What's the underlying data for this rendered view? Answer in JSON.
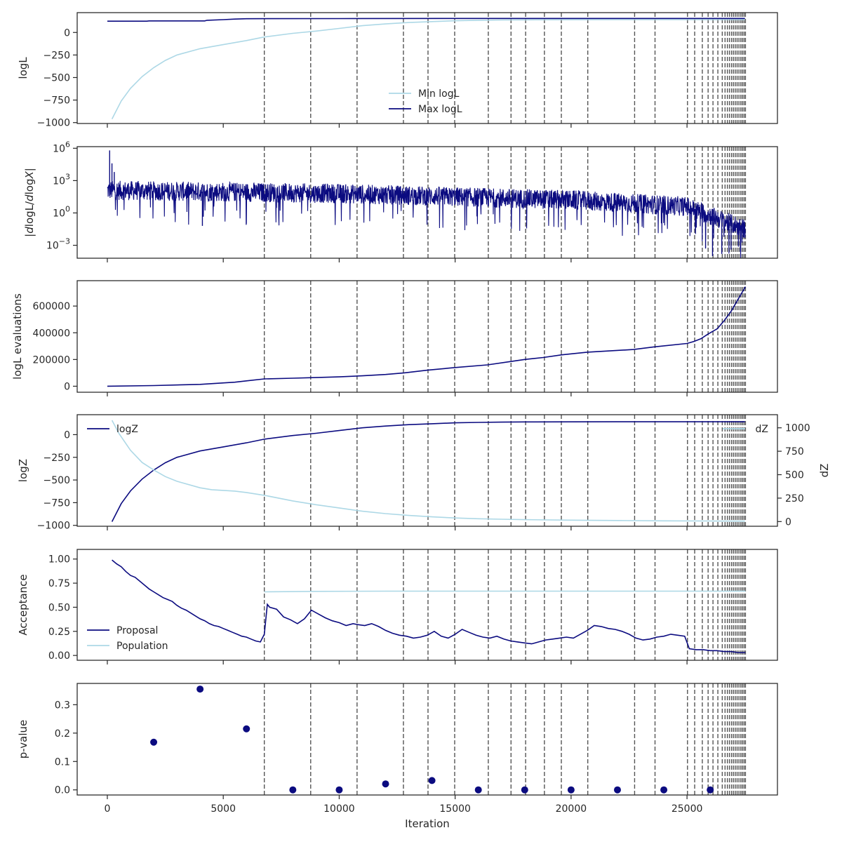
{
  "colors": {
    "dark": "#0b0b80",
    "light": "#add8e6",
    "vline": "#555555",
    "axes": "#262626"
  },
  "chart_data": {
    "type": "line",
    "xlabel": "Iteration",
    "xlim": [
      -1300,
      28900
    ],
    "x_ticks": [
      0,
      5000,
      10000,
      15000,
      20000,
      25000
    ],
    "x_tick_labels": [
      "0",
      "5000",
      "10000",
      "15000",
      "20000",
      "25000"
    ],
    "vlines": [
      6770,
      8770,
      10770,
      12770,
      13830,
      14980,
      16430,
      17410,
      18040,
      18850,
      19580,
      20720,
      22740,
      23620,
      25020,
      25330,
      25660,
      25910,
      26120,
      26330,
      26520,
      26640,
      26740,
      26830,
      26920,
      27000,
      27080,
      27160,
      27240,
      27320,
      27390,
      27460,
      27520
    ],
    "panels": [
      {
        "id": "logl",
        "ylabel": "logL",
        "ylim": [
          -1010,
          220
        ],
        "y_ticks": [
          0,
          -250,
          -500,
          -750,
          -1000
        ],
        "y_tick_labels": [
          "0",
          "−250",
          "−500",
          "−750",
          "−1000"
        ],
        "legend": "center",
        "series": [
          {
            "name": "Min logL",
            "color": "light",
            "x": [
              200,
              600,
              1000,
              1500,
              2000,
              2500,
              3000,
              4000,
              5000,
              6000,
              6770,
              8000,
              9000,
              10000,
              11000,
              12000,
              13000,
              14000,
              15000,
              16000,
              17000,
              18000,
              20000,
              22000,
              24000,
              26000,
              27500
            ],
            "y": [
              -960,
              -760,
              -620,
              -490,
              -390,
              -310,
              -250,
              -180,
              -135,
              -90,
              -50,
              -10,
              15,
              45,
              75,
              95,
              110,
              120,
              130,
              135,
              138,
              140,
              141,
              142,
              142,
              142,
              142
            ]
          },
          {
            "name": "Max logL",
            "color": "dark",
            "x": [
              0,
              1700,
              1800,
              3000,
              4200,
              4300,
              5000,
              5500,
              6000,
              7000,
              10000,
              15000,
              20000,
              25000,
              27500
            ],
            "y": [
              125,
              125,
              128,
              128,
              128,
              135,
              142,
              148,
              152,
              153,
              154,
              155,
              155,
              155,
              155
            ]
          }
        ]
      },
      {
        "id": "dlogl",
        "ylabel": "|dlogL/dlogX|",
        "log": true,
        "ylim_exp": [
          -4.2,
          6.15
        ],
        "y_tick_exps": [
          -3,
          0,
          3,
          6
        ],
        "y_tick_labels": [
          "10",
          "10",
          "10",
          "10"
        ],
        "y_tick_sups": [
          "−3",
          "0",
          "3",
          "6"
        ],
        "noise_series": {
          "color": "dark",
          "center_x": [
            0,
            6770,
            10000,
            15000,
            20000,
            25000,
            27500
          ],
          "center_log": [
            2.1,
            1.9,
            1.8,
            1.5,
            1.2,
            0.6,
            -1.5
          ],
          "spread": 0.9,
          "spikes": [
            [
              100,
              5.8
            ],
            [
              200,
              4.6
            ],
            [
              300,
              3.8
            ],
            [
              4100,
              -1.2
            ],
            [
              25800,
              -3.3
            ],
            [
              26100,
              -4.0
            ],
            [
              26500,
              -3.8
            ],
            [
              26900,
              -3.4
            ],
            [
              27300,
              -3.6
            ]
          ]
        }
      },
      {
        "id": "evals",
        "ylabel": "logL evaluations",
        "ylim": [
          -45000,
          790000
        ],
        "y_ticks": [
          0,
          200000,
          400000,
          600000
        ],
        "y_tick_labels": [
          "0",
          "200000",
          "400000",
          "600000"
        ],
        "series": [
          {
            "name": "",
            "color": "dark",
            "x": [
              0,
              2000,
              4000,
              5500,
              6000,
              6770,
              8000,
              9000,
              10000,
              11000,
              12000,
              12800,
              13800,
              15000,
              16400,
              17400,
              18000,
              18800,
              19600,
              20700,
              22700,
              23600,
              25000,
              25300,
              25600,
              25900,
              26300,
              26600,
              26900,
              27200,
              27520
            ],
            "y": [
              0,
              5000,
              14000,
              30000,
              40000,
              55000,
              60000,
              65000,
              70000,
              78000,
              88000,
              100000,
              120000,
              140000,
              160000,
              185000,
              200000,
              215000,
              235000,
              255000,
              275000,
              295000,
              320000,
              335000,
              355000,
              390000,
              430000,
              490000,
              560000,
              650000,
              745000
            ]
          }
        ]
      },
      {
        "id": "logz",
        "ylabel": "logZ",
        "ylim": [
          -1010,
          220
        ],
        "y_ticks": [
          0,
          -250,
          -500,
          -750,
          -1000
        ],
        "y_tick_labels": [
          "0",
          "−250",
          "−500",
          "−750",
          "−1000"
        ],
        "ylabel2": "dZ",
        "ylim2": [
          -50,
          1140
        ],
        "y2_ticks": [
          0,
          250,
          500,
          750,
          1000
        ],
        "y2_tick_labels": [
          "0",
          "250",
          "500",
          "750",
          "1000"
        ],
        "series": [
          {
            "name": "logZ",
            "color": "dark",
            "axis": 1,
            "x": [
              200,
              600,
              1000,
              1500,
              2000,
              2500,
              3000,
              4000,
              5000,
              6000,
              6770,
              8000,
              9000,
              10000,
              11000,
              12000,
              13000,
              14000,
              15000,
              16000,
              17000,
              18000,
              20000,
              22000,
              24000,
              26000,
              27500
            ],
            "y": [
              -960,
              -760,
              -620,
              -490,
              -390,
              -310,
              -250,
              -180,
              -135,
              -90,
              -50,
              -10,
              15,
              45,
              75,
              95,
              110,
              120,
              130,
              135,
              138,
              140,
              141,
              142,
              142,
              142,
              142
            ]
          },
          {
            "name": "dZ",
            "color": "light",
            "axis": 2,
            "x": [
              200,
              500,
              1000,
              1500,
              2000,
              2500,
              3000,
              4000,
              4500,
              5500,
              6000,
              6770,
              8000,
              9000,
              10000,
              11000,
              12000,
              13000,
              14000,
              15000,
              16000,
              17000,
              18000,
              20000,
              22000,
              24000,
              26000,
              27500
            ],
            "y": [
              1080,
              940,
              760,
              630,
              550,
              480,
              430,
              360,
              340,
              325,
              310,
              280,
              220,
              180,
              145,
              110,
              85,
              65,
              50,
              38,
              30,
              25,
              20,
              15,
              11,
              8,
              6,
              5
            ]
          }
        ]
      },
      {
        "id": "accept",
        "ylabel": "Acceptance",
        "ylim": [
          -0.05,
          1.1
        ],
        "y_ticks": [
          0,
          0.25,
          0.5,
          0.75,
          1.0
        ],
        "y_tick_labels": [
          "0.00",
          "0.25",
          "0.50",
          "0.75",
          "1.00"
        ],
        "legend": "lower-left",
        "series": [
          {
            "name": "Proposal",
            "color": "dark",
            "x": [
              200,
              400,
              600,
              800,
              1000,
              1200,
              1400,
              1600,
              1800,
              2000,
              2200,
              2400,
              2600,
              2800,
              3000,
              3200,
              3400,
              3600,
              3800,
              4000,
              4200,
              4400,
              4600,
              4800,
              5000,
              5200,
              5400,
              5600,
              5800,
              6000,
              6200,
              6400,
              6600,
              6770,
              6900,
              7000,
              7300,
              7600,
              7900,
              8200,
              8500,
              8800,
              9100,
              9400,
              9700,
              10000,
              10300,
              10600,
              10800,
              11100,
              11400,
              11700,
              12000,
              12300,
              12600,
              12900,
              13200,
              13500,
              13800,
              14100,
              14400,
              14700,
              15000,
              15300,
              15600,
              15900,
              16200,
              16500,
              16800,
              17100,
              17400,
              17700,
              18000,
              18300,
              18600,
              18900,
              19200,
              19500,
              19800,
              20100,
              20400,
              20700,
              21000,
              21300,
              21600,
              21900,
              22200,
              22500,
              22800,
              23100,
              23400,
              23700,
              24000,
              24300,
              24600,
              24900,
              25100,
              25400,
              25700,
              26000,
              26300,
              26600,
              26900,
              27200,
              27520
            ],
            "y": [
              0.99,
              0.95,
              0.92,
              0.87,
              0.83,
              0.81,
              0.77,
              0.73,
              0.69,
              0.66,
              0.63,
              0.6,
              0.58,
              0.56,
              0.52,
              0.49,
              0.47,
              0.44,
              0.41,
              0.38,
              0.36,
              0.33,
              0.31,
              0.3,
              0.28,
              0.26,
              0.24,
              0.22,
              0.2,
              0.19,
              0.17,
              0.15,
              0.14,
              0.22,
              0.53,
              0.5,
              0.48,
              0.4,
              0.37,
              0.33,
              0.38,
              0.47,
              0.43,
              0.39,
              0.36,
              0.34,
              0.31,
              0.33,
              0.32,
              0.31,
              0.33,
              0.3,
              0.26,
              0.23,
              0.21,
              0.2,
              0.18,
              0.19,
              0.21,
              0.25,
              0.2,
              0.18,
              0.22,
              0.27,
              0.24,
              0.21,
              0.19,
              0.18,
              0.2,
              0.17,
              0.15,
              0.14,
              0.13,
              0.12,
              0.14,
              0.16,
              0.17,
              0.18,
              0.19,
              0.18,
              0.22,
              0.26,
              0.31,
              0.3,
              0.28,
              0.27,
              0.25,
              0.22,
              0.18,
              0.16,
              0.17,
              0.19,
              0.2,
              0.22,
              0.21,
              0.2,
              0.07,
              0.06,
              0.06,
              0.05,
              0.05,
              0.04,
              0.04,
              0.03,
              0.03
            ]
          },
          {
            "name": "Population",
            "color": "light",
            "x": [
              6770,
              9000,
              12000,
              15000,
              20000,
              25000,
              27520
            ],
            "y": [
              0.66,
              0.665,
              0.667,
              0.667,
              0.667,
              0.667,
              0.667
            ]
          }
        ]
      },
      {
        "id": "pvalue",
        "ylabel": "p-value",
        "ylim": [
          -0.018,
          0.375
        ],
        "y_ticks": [
          0,
          0.1,
          0.2,
          0.3
        ],
        "y_tick_labels": [
          "0.0",
          "0.1",
          "0.2",
          "0.3"
        ],
        "scatter": {
          "color": "dark",
          "x": [
            2000,
            4000,
            6000,
            8000,
            10000,
            12000,
            14000,
            16000,
            18000,
            20000,
            22000,
            24000,
            26000
          ],
          "y": [
            0.168,
            0.355,
            0.215,
            0.0,
            0.0,
            0.021,
            0.033,
            0.0,
            0.0,
            0.0,
            0.0,
            0.0,
            0.0
          ]
        }
      }
    ]
  }
}
